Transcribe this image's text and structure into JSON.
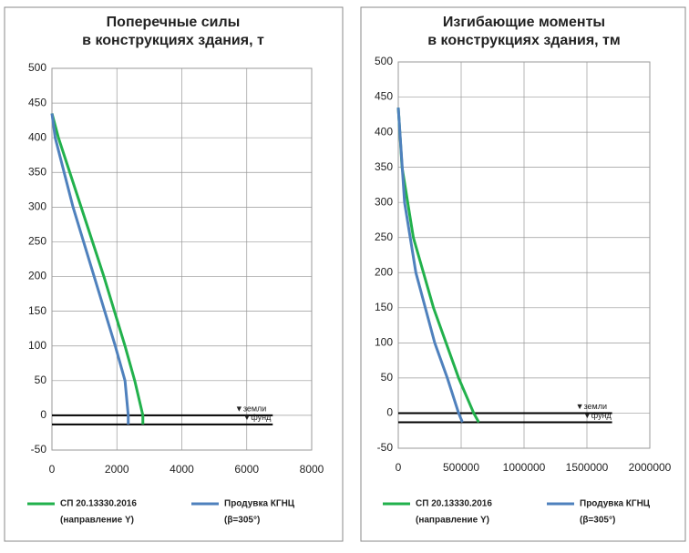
{
  "chart_data": [
    {
      "type": "line",
      "title_lines": [
        "Поперечные силы",
        "в конструкциях здания, т"
      ],
      "xlim": [
        0,
        8000
      ],
      "xticks": [
        0,
        2000,
        4000,
        6000,
        8000
      ],
      "ylim": [
        -50,
        500
      ],
      "yticks": [
        -50,
        0,
        50,
        100,
        150,
        200,
        250,
        300,
        350,
        400,
        450,
        500
      ],
      "grid": true,
      "series": [
        {
          "name": "СП 20.13330.2016",
          "detail": "(направление Y)",
          "color": "#22b14c",
          "x": [
            0,
            200,
            900,
            1600,
            2250,
            2550,
            2800,
            2800
          ],
          "values": [
            435,
            400,
            300,
            200,
            100,
            50,
            0,
            -13
          ]
        },
        {
          "name": "Продувка КГНЦ",
          "detail": "(β=305°)",
          "color": "#4f81bd",
          "x": [
            0,
            100,
            650,
            1300,
            1950,
            2250,
            2350,
            2350
          ],
          "values": [
            435,
            400,
            300,
            200,
            100,
            50,
            0,
            -13
          ]
        }
      ],
      "levels": [
        {
          "value": 0,
          "label": "▼земли"
        },
        {
          "value": -13,
          "label": "▼фунд"
        }
      ]
    },
    {
      "type": "line",
      "title_lines": [
        "Изгибающие моменты",
        "в конструкциях здания, тм"
      ],
      "xlim": [
        0,
        2000000
      ],
      "xticks": [
        0,
        500000,
        1000000,
        1500000,
        2000000
      ],
      "ylim": [
        -50,
        500
      ],
      "yticks": [
        -50,
        0,
        50,
        100,
        150,
        200,
        250,
        300,
        350,
        400,
        450,
        500
      ],
      "grid": true,
      "series": [
        {
          "name": "СП 20.13330.2016",
          "detail": "(направление Y)",
          "color": "#22b14c",
          "x": [
            0,
            30000,
            120000,
            200000,
            280000,
            380000,
            480000,
            600000,
            640000
          ],
          "values": [
            435,
            350,
            250,
            200,
            150,
            100,
            50,
            0,
            -13
          ]
        },
        {
          "name": "Продувка КГНЦ",
          "detail": "(β=305°)",
          "color": "#4f81bd",
          "x": [
            0,
            50000,
            140000,
            290000,
            390000,
            480000,
            510000
          ],
          "values": [
            435,
            300,
            200,
            100,
            50,
            0,
            -13
          ]
        }
      ],
      "levels": [
        {
          "value": 0,
          "label": "▼земли"
        },
        {
          "value": -13,
          "label": "▼фунд"
        }
      ]
    }
  ]
}
